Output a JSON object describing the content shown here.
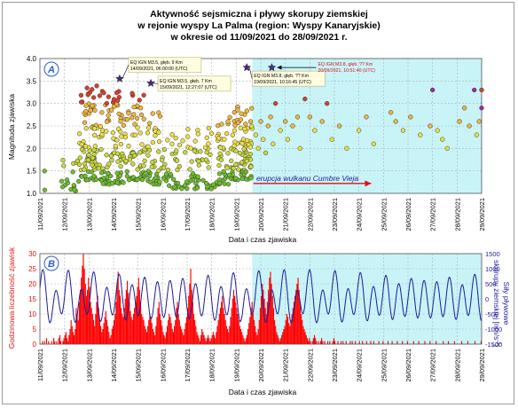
{
  "title": {
    "line1": "Aktywność sejsmiczna i pływy skorupy ziemskiej",
    "line2": "w rejonie wyspy La Palma (region: Wyspy Kanaryjskie)",
    "line3": "w okresie od 11/09/2021 do 28/09/2021 r."
  },
  "colors": {
    "eruption_bg": "#c8f4f8",
    "grid": "#b0b0b0",
    "tide_line": "#1c1c9a",
    "histogram": "#ff0000",
    "panel_letter": "#2a5bd7",
    "star": "#4b2a8a",
    "arrow_red": "#e01010"
  },
  "chart_data": [
    {
      "type": "scatter",
      "panel_label": "A",
      "ylabel": "Magnituda zjawiska",
      "xlabel": "Data i czas zjawiska",
      "ylim": [
        1.0,
        4.0
      ],
      "yticks": [
        "1.0",
        "1.5",
        "2.0",
        "2.5",
        "3.0",
        "3.5",
        "4.0"
      ],
      "xlim": [
        "11/09/2021",
        "29/09/2021"
      ],
      "xtick_labels": [
        "11/09/2021",
        "12/09/2021",
        "13/09/2021",
        "14/09/2021",
        "15/09/2021",
        "16/09/2021",
        "17/09/2021",
        "18/09/2021",
        "19/09/2021",
        "20/09/2021",
        "21/09/2021",
        "22/09/2021",
        "23/09/2021",
        "24/09/2021",
        "25/09/2021",
        "26/09/2021",
        "27/09/2021",
        "28/09/2021",
        "29/09/2021"
      ],
      "eruption_start_day": 19.65,
      "eruption_label": "erupcja wulkanu Cumbre Vieja",
      "annotations": [
        {
          "text1": "EQ IGN M3.5, głęb. 9 Km",
          "text2": "14/09/2021, 06:00:00 (UTC)",
          "day": 14.25,
          "mag": 3.55
        },
        {
          "text1": "EQ IGN M3.5, głęb. 7 Km",
          "text2": "15/09/2021, 12:27:07 (UTC)",
          "day": 15.52,
          "mag": 3.45
        },
        {
          "text1": "EQ IGN M3.8, głęb. ?? Km",
          "text2": "19/09/2021, 10:16:45 (UTC)",
          "day": 19.43,
          "mag": 3.8
        },
        {
          "text1": "EQ IGN M3.8, głęb. ?? Km",
          "text2": "20/09/2021, 10:51:40 (UTC)",
          "day": 20.45,
          "mag": 3.8
        }
      ],
      "points_after_eruption": [
        [
          19.8,
          2.3
        ],
        [
          19.9,
          2.0
        ],
        [
          20.0,
          2.6
        ],
        [
          20.1,
          2.2
        ],
        [
          20.2,
          1.9
        ],
        [
          20.3,
          2.5
        ],
        [
          20.4,
          2.7
        ],
        [
          20.5,
          2.1
        ],
        [
          20.6,
          3.0
        ],
        [
          20.8,
          2.4
        ],
        [
          21.0,
          2.6
        ],
        [
          21.1,
          2.2
        ],
        [
          21.3,
          2.5
        ],
        [
          21.5,
          2.7
        ],
        [
          21.6,
          2.0
        ],
        [
          21.8,
          3.1
        ],
        [
          22.0,
          2.7
        ],
        [
          22.2,
          2.4
        ],
        [
          22.5,
          2.6
        ],
        [
          22.7,
          3.0
        ],
        [
          22.9,
          2.2
        ],
        [
          23.2,
          2.5
        ],
        [
          23.5,
          2.0
        ],
        [
          24.0,
          2.4
        ],
        [
          24.3,
          2.7
        ],
        [
          24.6,
          2.1
        ],
        [
          25.3,
          2.8
        ],
        [
          25.5,
          2.6
        ],
        [
          25.8,
          2.4
        ],
        [
          26.1,
          2.7
        ],
        [
          26.5,
          2.3
        ],
        [
          26.9,
          2.5
        ],
        [
          27.2,
          2.4
        ],
        [
          27.4,
          2.2
        ],
        [
          27.6,
          2.0
        ],
        [
          28.1,
          2.6
        ],
        [
          28.3,
          2.9
        ],
        [
          28.5,
          2.5
        ],
        [
          28.8,
          2.3
        ],
        [
          28.9,
          2.6
        ],
        [
          29.0,
          3.3
        ]
      ],
      "points_after_eruption_high": [
        [
          27.0,
          3.3
        ],
        [
          28.7,
          3.3
        ],
        [
          29.0,
          2.9
        ]
      ]
    },
    {
      "type": "bar",
      "panel_label": "B",
      "ylabel": "Godzinowa liczebność zjawisk",
      "ylabel_right": "Siły pływowe skorupy ziemskiej [nm/s^2]",
      "ylabel_right_line1": "Siły pływowe",
      "ylabel_right_line2": "skorupy ziemskiej [nm/s",
      "ylabel_right_sup": "-2",
      "ylabel_right_end": "]",
      "xlabel": "Data i czas zjawiska",
      "ylim": [
        0,
        30
      ],
      "yticks": [
        "0",
        "5",
        "10",
        "15",
        "20",
        "25",
        "30"
      ],
      "ylim_right": [
        -1500,
        1500
      ],
      "yticks_right": [
        "1500",
        "1000",
        "500",
        "0",
        "-500",
        "-1000",
        "-1500"
      ],
      "tide_amplitude_nm_s2": 1000,
      "tide_period_hours": 12.42,
      "hourly_counts": [
        0,
        0,
        1,
        0,
        1,
        0,
        2,
        0,
        1,
        0,
        0,
        1,
        0,
        2,
        1,
        0,
        1,
        0,
        2,
        3,
        1,
        0,
        1,
        2,
        3,
        4,
        2,
        1,
        3,
        5,
        8,
        6,
        4,
        3,
        5,
        12,
        10,
        8,
        14,
        18,
        22,
        26,
        30,
        25,
        20,
        16,
        18,
        22,
        19,
        14,
        12,
        10,
        8,
        6,
        10,
        14,
        16,
        12,
        8,
        6,
        4,
        5,
        7,
        9,
        11,
        8,
        6,
        4,
        2,
        3,
        5,
        6,
        8,
        10,
        14,
        20,
        24,
        18,
        16,
        12,
        10,
        9,
        12,
        15,
        18,
        21,
        17,
        14,
        11,
        9,
        8,
        10,
        12,
        14,
        16,
        19,
        22,
        18,
        14,
        10,
        9,
        8,
        6,
        5,
        4,
        6,
        8,
        10,
        9,
        7,
        5,
        4,
        3,
        6,
        9,
        12,
        14,
        10,
        8,
        6,
        4,
        3,
        2,
        4,
        6,
        8,
        10,
        9,
        7,
        5,
        4,
        6,
        8,
        12,
        14,
        10,
        8,
        6,
        5,
        4,
        3,
        5,
        7,
        9,
        12,
        16,
        20,
        25,
        18,
        14,
        10,
        8,
        6,
        4,
        3,
        2,
        1,
        3,
        5,
        4,
        3,
        2,
        1,
        2,
        3,
        2,
        1,
        2,
        3,
        4,
        3,
        2,
        4,
        6,
        8,
        10,
        12,
        14,
        16,
        12,
        10,
        8,
        6,
        5,
        4,
        6,
        9,
        12,
        15,
        18,
        16,
        14,
        12,
        10,
        8,
        6,
        5,
        4,
        3,
        2,
        1,
        2,
        3,
        5,
        7,
        9,
        12,
        14,
        10,
        8,
        6,
        4,
        3,
        5,
        8,
        12,
        16,
        20,
        18,
        15,
        12,
        10,
        14,
        18,
        22,
        24,
        20,
        16,
        12,
        8,
        6,
        4,
        3,
        2,
        1,
        2,
        3,
        4,
        5,
        6,
        8,
        10,
        9,
        7,
        6,
        8,
        10,
        12,
        14,
        16,
        18,
        20,
        22,
        18,
        14,
        10,
        8,
        6,
        5,
        4,
        3,
        2,
        1,
        2,
        1,
        0,
        1,
        2,
        3,
        2,
        1,
        0,
        1,
        0,
        1,
        2,
        1,
        0,
        1,
        0,
        0,
        1,
        0,
        1,
        0,
        0,
        1,
        2,
        1,
        0,
        0,
        1,
        0,
        0,
        1,
        0,
        1,
        0,
        0,
        1,
        0,
        0,
        0,
        1,
        0,
        1,
        0,
        0,
        1,
        0,
        0,
        0,
        1,
        0,
        0,
        1,
        0,
        0,
        0,
        1,
        0,
        0,
        0,
        1,
        0,
        0,
        1,
        0,
        0,
        0,
        0,
        1,
        0,
        0,
        0,
        1,
        0,
        0,
        0,
        0,
        1,
        0,
        0,
        0,
        1,
        0,
        0,
        0,
        0,
        1,
        0,
        0,
        0,
        0,
        1,
        0,
        0,
        0,
        0,
        1,
        0,
        0,
        0,
        0,
        0,
        1,
        0,
        0,
        0,
        0,
        1,
        0,
        0,
        0,
        0,
        0,
        1,
        0,
        0,
        0,
        0,
        1,
        0,
        0,
        0,
        0,
        0,
        1,
        0,
        0,
        0,
        0,
        0,
        0,
        1,
        0,
        0,
        0,
        0,
        1,
        0,
        0,
        0,
        0,
        0,
        1,
        0,
        0,
        0,
        0,
        0,
        0,
        1,
        0,
        0,
        0,
        0,
        0,
        1,
        0,
        0,
        0,
        0,
        0,
        0,
        1,
        0,
        0,
        0,
        0,
        0,
        1,
        0,
        0,
        0,
        0,
        0,
        0,
        1,
        0,
        0,
        0,
        0,
        0,
        0,
        1,
        0,
        0,
        0,
        0,
        0,
        0,
        0,
        1,
        0,
        0,
        0,
        0,
        0,
        1,
        0,
        0,
        0,
        0,
        0,
        0,
        1,
        0,
        0,
        0,
        0,
        0,
        0,
        0,
        1,
        0,
        0,
        0,
        0,
        0,
        0,
        1,
        0,
        0,
        0,
        0,
        0,
        0,
        0,
        1,
        0,
        0,
        0,
        0,
        0,
        0,
        0,
        1,
        0,
        0,
        0,
        0,
        0,
        0,
        0,
        1,
        0,
        0,
        0,
        0,
        0,
        0,
        0,
        0,
        1,
        0,
        0,
        0,
        0,
        0,
        0,
        0,
        1,
        0,
        0,
        0,
        0,
        0,
        0,
        0,
        1,
        0,
        0,
        0,
        0,
        0,
        0,
        0,
        0,
        1,
        0,
        0,
        0,
        0,
        0,
        0,
        0,
        1,
        0,
        0,
        0,
        0,
        0,
        0,
        0,
        0,
        1,
        0,
        0,
        0,
        0,
        0,
        0,
        0,
        0,
        1,
        0,
        0,
        0,
        0,
        0,
        0,
        0,
        0,
        0,
        1,
        0,
        0,
        0,
        0,
        0,
        0,
        0,
        0,
        1,
        0,
        0,
        0,
        0,
        0,
        0,
        0,
        0,
        1,
        0,
        0,
        0,
        0,
        0,
        0,
        0,
        0,
        0,
        1,
        0,
        0,
        0,
        0,
        0,
        0,
        0,
        0,
        0,
        1
      ]
    }
  ]
}
